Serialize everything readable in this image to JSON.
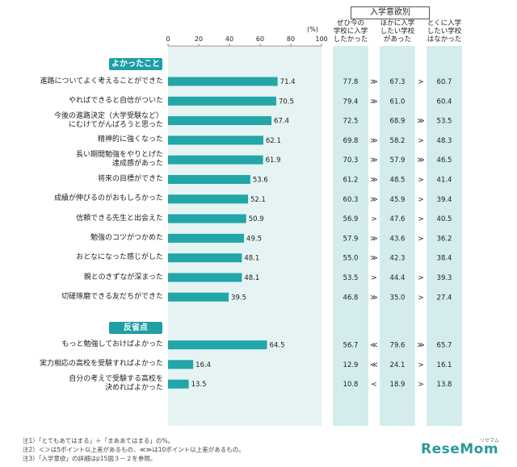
{
  "chart_data": {
    "type": "bar",
    "unit_label": "(%)",
    "xlim": [
      0,
      100
    ],
    "xticks": [
      0,
      20,
      40,
      60,
      80,
      100
    ],
    "bar_color": "#22a6a8",
    "group_header": "入学意欲別",
    "column_headers": [
      [
        "ぜひ今の",
        "学校に入学",
        "したかった"
      ],
      [
        "ほかに入学",
        "したい学校",
        "があった"
      ],
      [
        "とくに入学",
        "したい学校",
        "はなかった"
      ]
    ],
    "sections": [
      {
        "title": "よかったこと",
        "items": [
          {
            "label": [
              "進路についてよく考えることができた"
            ],
            "value": 71.4,
            "a": "77.8",
            "s1": "≫",
            "b": "67.3",
            "s2": ">",
            "c": "60.7"
          },
          {
            "label": [
              "やればできると自信がついた"
            ],
            "value": 70.5,
            "a": "79.4",
            "s1": "≫",
            "b": "61.0",
            "s2": "",
            "c": "60.4"
          },
          {
            "label": [
              "今後の進路決定（大学受験など）",
              "にむけてがんばろうと思った"
            ],
            "value": 67.4,
            "a": "72.5",
            "s1": "",
            "b": "68.9",
            "s2": "≫",
            "c": "53.5"
          },
          {
            "label": [
              "精神的に強くなった"
            ],
            "value": 62.1,
            "a": "69.8",
            "s1": "≫",
            "b": "58.2",
            "s2": ">",
            "c": "48.3"
          },
          {
            "label": [
              "長い期間勉強をやりとげた",
              "達成感があった"
            ],
            "value": 61.9,
            "a": "70.3",
            "s1": "≫",
            "b": "57.9",
            "s2": "≫",
            "c": "46.5"
          },
          {
            "label": [
              "将来の目標ができた"
            ],
            "value": 53.6,
            "a": "61.2",
            "s1": "≫",
            "b": "48.5",
            "s2": ">",
            "c": "41.4"
          },
          {
            "label": [
              "成績が伸びるのがおもしろかった"
            ],
            "value": 52.1,
            "a": "60.3",
            "s1": "≫",
            "b": "45.9",
            "s2": ">",
            "c": "39.4"
          },
          {
            "label": [
              "信頼できる先生と出会えた"
            ],
            "value": 50.9,
            "a": "56.9",
            "s1": ">",
            "b": "47.6",
            "s2": ">",
            "c": "40.5"
          },
          {
            "label": [
              "勉強のコツがつかめた"
            ],
            "value": 49.5,
            "a": "57.9",
            "s1": "≫",
            "b": "43.6",
            "s2": ">",
            "c": "36.2"
          },
          {
            "label": [
              "おとなになった感じがした"
            ],
            "value": 48.1,
            "a": "55.0",
            "s1": "≫",
            "b": "42.3",
            "s2": "",
            "c": "38.4"
          },
          {
            "label": [
              "親とのきずなが深まった"
            ],
            "value": 48.1,
            "a": "53.5",
            "s1": ">",
            "b": "44.4",
            "s2": ">",
            "c": "39.3"
          },
          {
            "label": [
              "切磋琢磨できる友だちができた"
            ],
            "value": 39.5,
            "a": "46.8",
            "s1": "≫",
            "b": "35.0",
            "s2": ">",
            "c": "27.4"
          }
        ]
      },
      {
        "title": "反省点",
        "items": [
          {
            "label": [
              "もっと勉強しておけばよかった"
            ],
            "value": 64.5,
            "a": "56.7",
            "s1": "≪",
            "b": "79.6",
            "s2": "≫",
            "c": "65.7"
          },
          {
            "label": [
              "実力相応の高校を受験すればよかった"
            ],
            "value": 16.4,
            "a": "12.9",
            "s1": "≪",
            "b": "24.1",
            "s2": ">",
            "c": "16.1"
          },
          {
            "label": [
              "自分の考えで受験する高校を",
              "決めればよかった"
            ],
            "value": 13.5,
            "a": "10.8",
            "s1": "<",
            "b": "18.9",
            "s2": ">",
            "c": "13.8"
          }
        ]
      }
    ]
  },
  "notes": [
    "注1）「とてもあてはまる」＋「まああてはまる」の%。",
    "注2）＜＞は5ポイント以上差があるもの、≪≫は10ポイント以上差があるもの。",
    "注3）「入学意欲」の詳細はp15図３－２を参照。"
  ],
  "logo": {
    "text": "ReseMom",
    "sub": "リセマム"
  }
}
